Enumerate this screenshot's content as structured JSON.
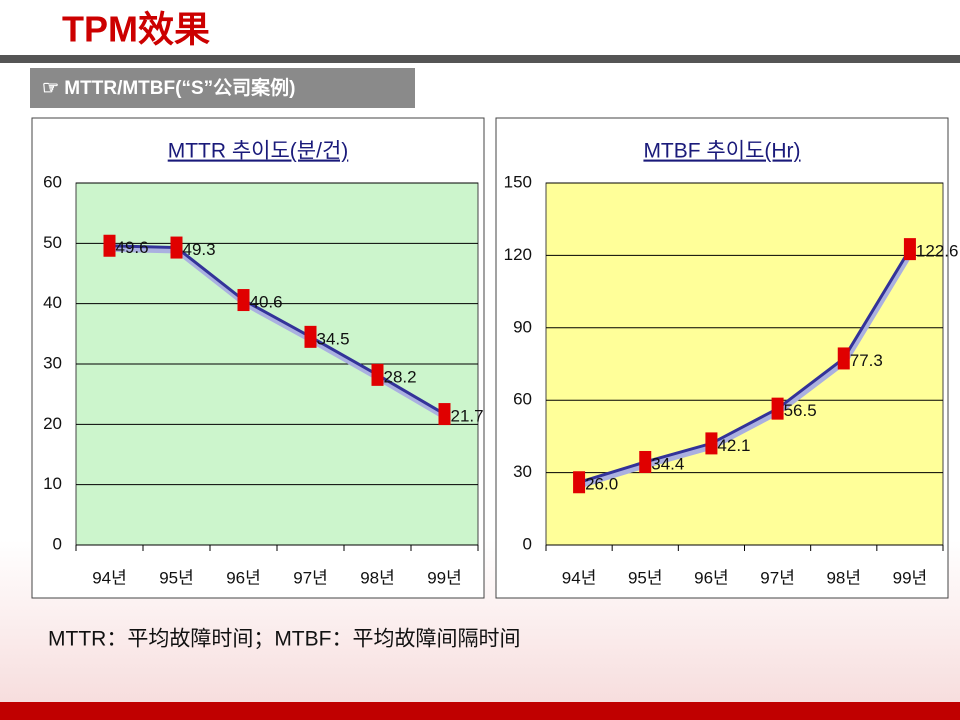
{
  "title": "TPM效果",
  "subtitle": "☞ MTTR/MTBF(“S”公司案例)",
  "footnote": "MTTR：平均故障时间；MTBF：平均故障间隔时间",
  "chart_data": [
    {
      "type": "line",
      "title": "MTTR 추이도(분/건)",
      "categories": [
        "94년",
        "95년",
        "96년",
        "97년",
        "98년",
        "99년"
      ],
      "values": [
        49.6,
        49.3,
        40.6,
        34.5,
        28.2,
        21.7
      ],
      "color": "#333399",
      "marker_color": "#e00000",
      "background": "#ccf5cc",
      "ylim": [
        0,
        60
      ],
      "yticks": [
        0,
        10,
        20,
        30,
        40,
        50,
        60
      ],
      "grid": true
    },
    {
      "type": "line",
      "title": "MTBF 추이도(Hr)",
      "categories": [
        "94년",
        "95년",
        "96년",
        "97년",
        "98년",
        "99년"
      ],
      "values": [
        26.0,
        34.4,
        42.1,
        56.5,
        77.3,
        122.6
      ],
      "value_labels": [
        "26.0",
        "34.4",
        "42.1",
        "56.5",
        "77.3",
        "122.6"
      ],
      "color": "#333399",
      "marker_color": "#e00000",
      "background": "#ffff99",
      "ylim": [
        0,
        150
      ],
      "yticks": [
        0,
        30,
        60,
        90,
        120,
        150
      ],
      "grid": true
    }
  ]
}
